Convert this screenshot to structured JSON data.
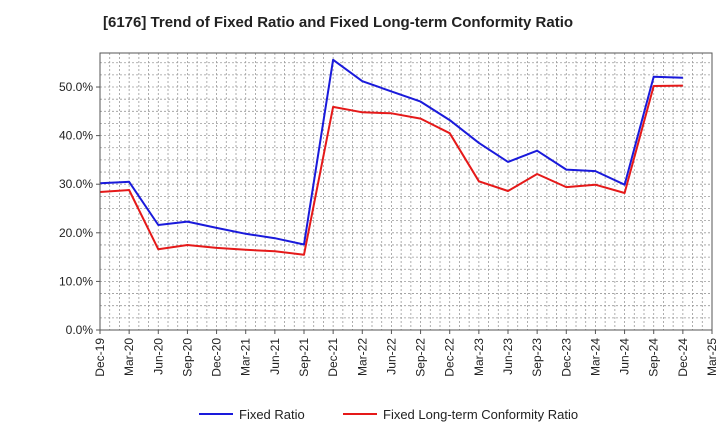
{
  "chart_data": {
    "type": "line",
    "title": "[6176]  Trend of Fixed Ratio and Fixed Long-term Conformity Ratio",
    "xlabel": "",
    "ylabel": "",
    "categories": [
      "Dec-19",
      "Mar-20",
      "Jun-20",
      "Sep-20",
      "Dec-20",
      "Mar-21",
      "Jun-21",
      "Sep-21",
      "Dec-21",
      "Mar-22",
      "Jun-22",
      "Sep-22",
      "Dec-22",
      "Mar-23",
      "Jun-23",
      "Sep-23",
      "Dec-23",
      "Mar-24",
      "Jun-24",
      "Sep-24",
      "Dec-24",
      "Mar-25"
    ],
    "y_ticks": [
      "0.0%",
      "10.0%",
      "20.0%",
      "30.0%",
      "40.0%",
      "50.0%"
    ],
    "ylim": [
      0,
      57
    ],
    "y_unit": "%",
    "grid": true,
    "legend_position": "bottom",
    "series": [
      {
        "name": "Fixed Ratio",
        "color": "#1a1adb",
        "values": [
          30.2,
          30.5,
          21.6,
          22.3,
          21.0,
          19.8,
          18.9,
          17.6,
          55.6,
          51.2,
          49.1,
          47.0,
          43.2,
          38.5,
          34.6,
          36.9,
          33.0,
          32.7,
          29.9,
          52.1,
          51.9,
          null
        ]
      },
      {
        "name": "Fixed Long-term Conformity Ratio",
        "color": "#e51919",
        "values": [
          28.4,
          28.8,
          16.6,
          17.5,
          16.9,
          16.5,
          16.2,
          15.5,
          45.9,
          44.8,
          44.6,
          43.5,
          40.5,
          30.6,
          28.6,
          32.1,
          29.4,
          29.9,
          28.2,
          50.2,
          50.3,
          null
        ]
      }
    ]
  }
}
